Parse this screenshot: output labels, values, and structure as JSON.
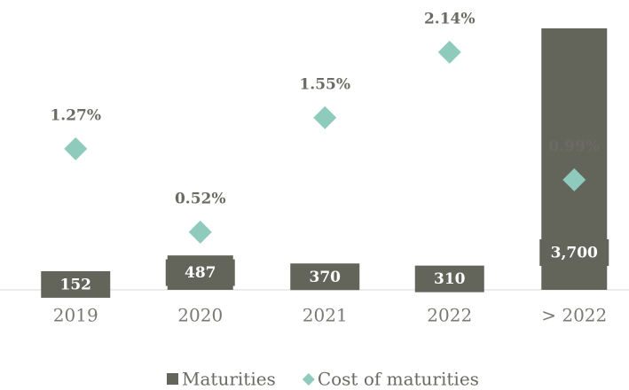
{
  "chart_data": {
    "type": "bar",
    "categories": [
      "2019",
      "2020",
      "2021",
      "2022",
      "> 2022"
    ],
    "series": [
      {
        "name": "Maturities",
        "color": "#64655a",
        "values": [
          152,
          487,
          370,
          310,
          3700
        ],
        "value_labels": [
          "152",
          "487",
          "370",
          "310",
          "3,700"
        ]
      },
      {
        "name": "Cost of maturities",
        "color": "#8ecbbd",
        "axis": "y2",
        "type": "scatter",
        "values": [
          1.27,
          0.52,
          1.55,
          2.14,
          0.99
        ],
        "value_labels": [
          "1.27%",
          "0.52%",
          "1.55%",
          "2.14%",
          "0.99%"
        ]
      }
    ],
    "ylim": [
      0,
      3700
    ],
    "y2lim": [
      0,
      2.354
    ],
    "legend": "bottom"
  }
}
